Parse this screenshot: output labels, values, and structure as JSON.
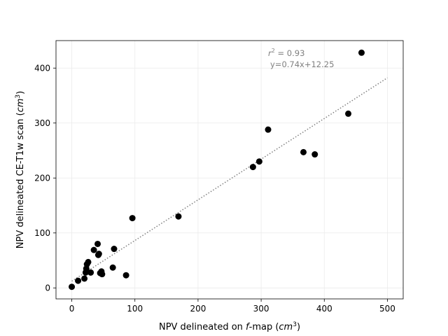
{
  "chart_data": {
    "type": "scatter",
    "xlabel_parts": [
      "NPV delineated on ",
      "f",
      "-map (",
      "cm",
      "3",
      ")"
    ],
    "ylabel_parts": [
      "NPV delineated CE-T1w scan (",
      "cm",
      "3",
      ")"
    ],
    "xlim": [
      -25,
      525
    ],
    "ylim": [
      -20,
      450
    ],
    "xticks": [
      0,
      100,
      200,
      300,
      400,
      500
    ],
    "yticks": [
      0,
      100,
      200,
      300,
      400
    ],
    "grid": true,
    "point_color": "#000000",
    "fit_line": {
      "slope": 0.74,
      "intercept": 12.25,
      "x_range": [
        0,
        500
      ],
      "style": "dotted",
      "color": "#808080"
    },
    "annotation": {
      "r2_label": "r",
      "r2_exp": "2",
      "r2_value": " = 0.93",
      "equation": "y=0.74x+12.25"
    },
    "points": [
      {
        "x": 0,
        "y": 2
      },
      {
        "x": 10,
        "y": 13
      },
      {
        "x": 20,
        "y": 17
      },
      {
        "x": 22,
        "y": 28
      },
      {
        "x": 23,
        "y": 35
      },
      {
        "x": 24,
        "y": 43
      },
      {
        "x": 26,
        "y": 47
      },
      {
        "x": 30,
        "y": 28
      },
      {
        "x": 35,
        "y": 69
      },
      {
        "x": 41,
        "y": 80
      },
      {
        "x": 42,
        "y": 60
      },
      {
        "x": 43,
        "y": 62
      },
      {
        "x": 45,
        "y": 27
      },
      {
        "x": 47,
        "y": 30
      },
      {
        "x": 48,
        "y": 25
      },
      {
        "x": 65,
        "y": 37
      },
      {
        "x": 67,
        "y": 71
      },
      {
        "x": 86,
        "y": 23
      },
      {
        "x": 96,
        "y": 127
      },
      {
        "x": 169,
        "y": 130
      },
      {
        "x": 287,
        "y": 220
      },
      {
        "x": 297,
        "y": 230
      },
      {
        "x": 311,
        "y": 288
      },
      {
        "x": 367,
        "y": 247
      },
      {
        "x": 385,
        "y": 243
      },
      {
        "x": 438,
        "y": 317
      },
      {
        "x": 459,
        "y": 428
      }
    ]
  }
}
